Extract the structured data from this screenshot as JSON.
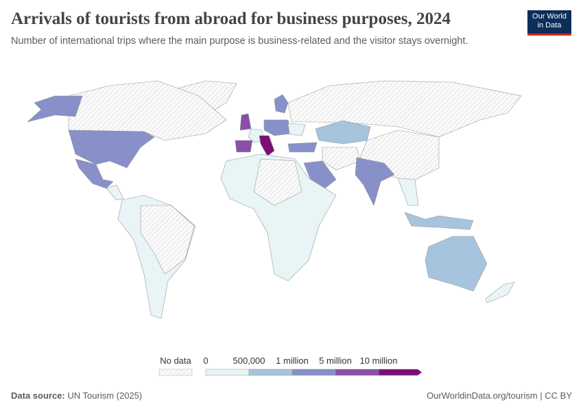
{
  "header": {
    "title": "Arrivals of tourists from abroad for business purposes, 2024",
    "subtitle": "Number of international trips where the main purpose is business-related and the visitor stays overnight."
  },
  "logo": {
    "line1": "Our World",
    "line2": "in Data"
  },
  "legend": {
    "no_data": "No data",
    "labels": [
      "0",
      "500,000",
      "1 million",
      "5 million",
      "10 million"
    ],
    "colors": [
      "#e8f4f6",
      "#a6c4de",
      "#8790c8",
      "#8a4fa6",
      "#7a0e78"
    ]
  },
  "footer": {
    "source_label": "Data source:",
    "source": "UN Tourism (2025)",
    "credit": "OurWorldinData.org/tourism | CC BY"
  }
}
